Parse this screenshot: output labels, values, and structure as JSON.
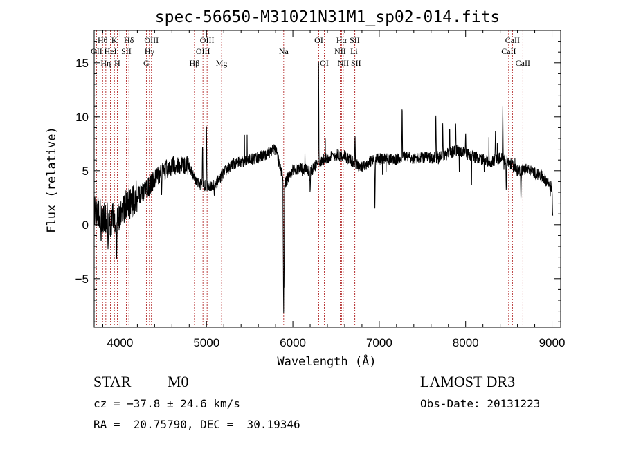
{
  "chart_data": {
    "type": "line",
    "title": "spec-56650-M31021N31M1_sp02-014.fits",
    "xlabel": "Wavelength (Å)",
    "ylabel": "Flux (relative)",
    "xlim": [
      3700,
      9100
    ],
    "ylim": [
      -9.5,
      18
    ],
    "x_ticks": [
      4000,
      5000,
      6000,
      7000,
      8000,
      9000
    ],
    "y_ticks": [
      -5,
      0,
      5,
      10,
      15
    ],
    "x_tick_labels": [
      "4000",
      "5000",
      "6000",
      "7000",
      "8000",
      "9000"
    ],
    "y_tick_labels": [
      "−5",
      "0",
      "5",
      "10",
      "15"
    ],
    "grid": false,
    "line_color": "#000000",
    "marker_color": "#aa1111",
    "spectral_lines": [
      {
        "label": "OII",
        "wavelength": 3727,
        "row": 2
      },
      {
        "label": "Hθ",
        "wavelength": 3798,
        "row": 1
      },
      {
        "label": "Hη",
        "wavelength": 3835,
        "row": 3
      },
      {
        "label": "HeI",
        "wavelength": 3889,
        "row": 2
      },
      {
        "label": "K",
        "wavelength": 3934,
        "row": 1
      },
      {
        "label": "H",
        "wavelength": 3968,
        "row": 3
      },
      {
        "label": "SII",
        "wavelength": 4072,
        "row": 2
      },
      {
        "label": "Hδ",
        "wavelength": 4102,
        "row": 1
      },
      {
        "label": "G",
        "wavelength": 4304,
        "row": 3
      },
      {
        "label": "Hγ",
        "wavelength": 4340,
        "row": 2
      },
      {
        "label": "OIII",
        "wavelength": 4363,
        "row": 1
      },
      {
        "label": "Hβ",
        "wavelength": 4861,
        "row": 3
      },
      {
        "label": "OIII",
        "wavelength": 4959,
        "row": 2
      },
      {
        "label": "OIII",
        "wavelength": 5007,
        "row": 1
      },
      {
        "label": "Mg",
        "wavelength": 5175,
        "row": 3
      },
      {
        "label": "Na",
        "wavelength": 5894,
        "row": 2
      },
      {
        "label": "OI",
        "wavelength": 6300,
        "row": 1
      },
      {
        "label": "OI",
        "wavelength": 6364,
        "row": 3
      },
      {
        "label": "NII",
        "wavelength": 6548,
        "row": 2
      },
      {
        "label": "Hα",
        "wavelength": 6563,
        "row": 1
      },
      {
        "label": "NII",
        "wavelength": 6583,
        "row": 3
      },
      {
        "label": "Li",
        "wavelength": 6708,
        "row": 2
      },
      {
        "label": "SII",
        "wavelength": 6716,
        "row": 1
      },
      {
        "label": "SII",
        "wavelength": 6731,
        "row": 3
      },
      {
        "label": "CaII",
        "wavelength": 8498,
        "row": 2
      },
      {
        "label": "CaII",
        "wavelength": 8542,
        "row": 1
      },
      {
        "label": "CaII",
        "wavelength": 8662,
        "row": 3
      }
    ],
    "continuum_knots": [
      [
        3700,
        1.2
      ],
      [
        3800,
        0.8
      ],
      [
        3900,
        0.4
      ],
      [
        4000,
        0.9
      ],
      [
        4100,
        2.0
      ],
      [
        4200,
        2.6
      ],
      [
        4300,
        3.2
      ],
      [
        4400,
        4.2
      ],
      [
        4500,
        5.0
      ],
      [
        4600,
        5.4
      ],
      [
        4700,
        5.6
      ],
      [
        4800,
        5.4
      ],
      [
        4900,
        3.8
      ],
      [
        5000,
        3.6
      ],
      [
        5100,
        3.7
      ],
      [
        5200,
        4.8
      ],
      [
        5300,
        5.6
      ],
      [
        5400,
        5.8
      ],
      [
        5500,
        6.0
      ],
      [
        5600,
        6.2
      ],
      [
        5700,
        6.6
      ],
      [
        5800,
        7.0
      ],
      [
        5900,
        3.8
      ],
      [
        6000,
        5.0
      ],
      [
        6100,
        5.3
      ],
      [
        6200,
        4.9
      ],
      [
        6300,
        5.8
      ],
      [
        6400,
        6.2
      ],
      [
        6500,
        6.5
      ],
      [
        6600,
        6.4
      ],
      [
        6700,
        5.8
      ],
      [
        6800,
        5.3
      ],
      [
        6900,
        5.9
      ],
      [
        7000,
        6.1
      ],
      [
        7100,
        6.1
      ],
      [
        7200,
        6.0
      ],
      [
        7300,
        6.4
      ],
      [
        7400,
        6.1
      ],
      [
        7500,
        6.2
      ],
      [
        7600,
        6.2
      ],
      [
        7700,
        6.3
      ],
      [
        7800,
        6.6
      ],
      [
        7900,
        6.9
      ],
      [
        8000,
        6.6
      ],
      [
        8100,
        6.3
      ],
      [
        8200,
        6.0
      ],
      [
        8300,
        5.8
      ],
      [
        8400,
        6.2
      ],
      [
        8500,
        5.8
      ],
      [
        8600,
        5.0
      ],
      [
        8700,
        5.2
      ],
      [
        8800,
        4.8
      ],
      [
        8900,
        4.4
      ],
      [
        9000,
        3.4
      ],
      [
        9010,
        0.5
      ]
    ],
    "features": [
      {
        "x": 5893,
        "y": -9.5,
        "width": 8
      },
      {
        "x": 5898,
        "y": -6.0,
        "width": 6
      },
      {
        "x": 6298,
        "y": 15.5,
        "width": 5
      },
      {
        "x": 7265,
        "y": 11.5,
        "width": 6
      },
      {
        "x": 7655,
        "y": 10.5,
        "width": 6
      },
      {
        "x": 7735,
        "y": 9.5,
        "width": 6
      },
      {
        "x": 7815,
        "y": 9.3,
        "width": 6
      },
      {
        "x": 7885,
        "y": 9.6,
        "width": 6
      },
      {
        "x": 8000,
        "y": 8.8,
        "width": 6
      },
      {
        "x": 8345,
        "y": 9.0,
        "width": 6
      },
      {
        "x": 8430,
        "y": 11.0,
        "width": 6
      },
      {
        "x": 8470,
        "y": 3.0,
        "width": 6
      },
      {
        "x": 8640,
        "y": 2.0,
        "width": 6
      },
      {
        "x": 5000,
        "y": 9.3,
        "width": 6
      },
      {
        "x": 4955,
        "y": 8.0,
        "width": 6
      },
      {
        "x": 6950,
        "y": 1.0,
        "width": 6
      },
      {
        "x": 6720,
        "y": 8.5,
        "width": 6
      },
      {
        "x": 3780,
        "y": -2.0,
        "width": 6
      },
      {
        "x": 3860,
        "y": -2.5,
        "width": 6
      },
      {
        "x": 3960,
        "y": -3.5,
        "width": 6
      },
      {
        "x": 4480,
        "y": 2.5,
        "width": 6
      },
      {
        "x": 5090,
        "y": 2.6,
        "width": 6
      },
      {
        "x": 6200,
        "y": 2.8,
        "width": 6
      }
    ],
    "noise_model": {
      "seed": 56650,
      "step": 2.2
    }
  },
  "info": {
    "object_class": "STAR",
    "subclass": "M0",
    "survey": "LAMOST DR3",
    "redshift": "cz = −37.8 ± 24.6 km/s",
    "obs_date": "Obs-Date: 20131223",
    "coords": "RA =  20.75790, DEC =  30.19346"
  }
}
